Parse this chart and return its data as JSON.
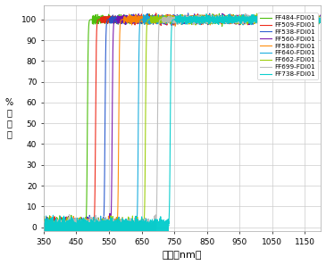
{
  "title": "",
  "xlabel": "波长（nm）",
  "ylabel": "%\n率\n过\n滤",
  "xlim": [
    350,
    1200
  ],
  "ylim": [
    -2,
    107
  ],
  "yticks": [
    0,
    10,
    20,
    30,
    40,
    50,
    60,
    70,
    80,
    90,
    100
  ],
  "xticks": [
    350,
    450,
    550,
    650,
    750,
    850,
    950,
    1050,
    1150
  ],
  "xticklabels": [
    "350",
    "450",
    "550",
    "650",
    "750",
    "850",
    "950",
    "1050",
    "1150"
  ],
  "filters": [
    {
      "name": "FF484-FDi01",
      "color": "#44bb00",
      "cutoff": 484,
      "steepness": 1.2
    },
    {
      "name": "FF509-FDi01",
      "color": "#ee2211",
      "cutoff": 509,
      "steepness": 1.2
    },
    {
      "name": "FF538-FDi01",
      "color": "#2255cc",
      "cutoff": 538,
      "steepness": 1.2
    },
    {
      "name": "FF560-FDi01",
      "color": "#7711aa",
      "cutoff": 560,
      "steepness": 1.2
    },
    {
      "name": "FF580-FDi01",
      "color": "#ff8800",
      "cutoff": 580,
      "steepness": 1.2
    },
    {
      "name": "FF640-FDi01",
      "color": "#11aadd",
      "cutoff": 640,
      "steepness": 1.2
    },
    {
      "name": "FF662-FDi01",
      "color": "#99cc00",
      "cutoff": 662,
      "steepness": 1.2
    },
    {
      "name": "FF699-FDi01",
      "color": "#bbbbbb",
      "cutoff": 699,
      "steepness": 1.2
    },
    {
      "name": "FF738-FDi01",
      "color": "#00cccc",
      "cutoff": 738,
      "steepness": 1.2
    }
  ],
  "grid_color": "#cccccc",
  "bg_color": "#ffffff",
  "low_noise_amp": 1.8,
  "high_noise_amp": 0.8,
  "linewidth": 0.8
}
